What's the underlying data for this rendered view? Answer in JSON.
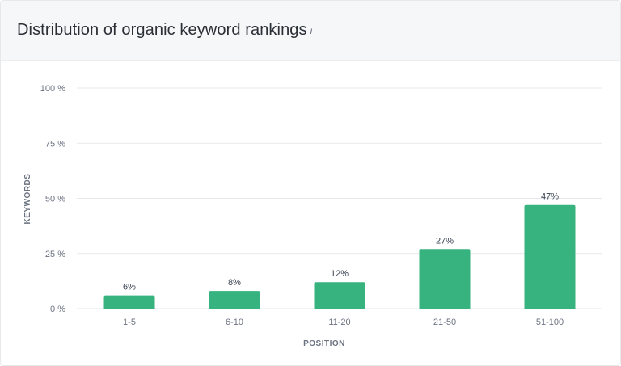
{
  "header": {
    "title": "Distribution of organic keyword rankings",
    "info_icon": "i"
  },
  "colors": {
    "bar": "#36b37e",
    "grid": "#e6e8ec",
    "axis_text": "#6b7280",
    "label_text": "#374151",
    "header_bg": "#f6f7f9"
  },
  "chart_data": {
    "type": "bar",
    "title": "Distribution of organic keyword rankings",
    "xlabel": "POSITION",
    "ylabel": "KEYWORDS",
    "categories": [
      "1-5",
      "6-10",
      "11-20",
      "21-50",
      "51-100"
    ],
    "values": [
      6,
      8,
      12,
      27,
      47
    ],
    "value_labels": [
      "6%",
      "8%",
      "12%",
      "27%",
      "47%"
    ],
    "ylim": [
      0,
      100
    ],
    "yticks": [
      0,
      25,
      50,
      75,
      100
    ],
    "ytick_labels": [
      "0 %",
      "25 %",
      "50 %",
      "75 %",
      "100 %"
    ],
    "grid": true,
    "legend": "none"
  }
}
